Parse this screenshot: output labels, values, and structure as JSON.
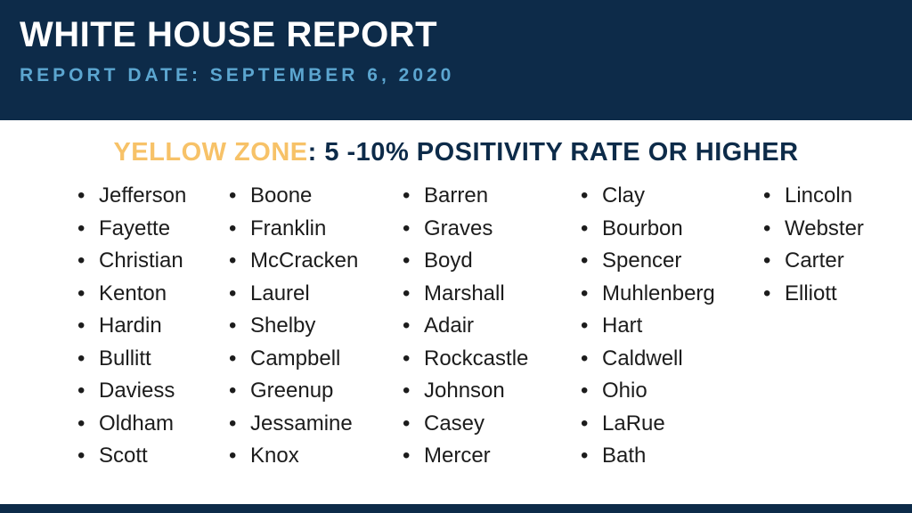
{
  "header": {
    "title": "WHITE HOUSE REPORT",
    "report_date": "REPORT DATE: SEPTEMBER 6, 2020"
  },
  "heading": {
    "zone": "YELLOW ZONE",
    "criteria": ": 5 -10% POSITIVITY RATE OR HIGHER"
  },
  "columns": [
    [
      "Jefferson",
      "Fayette",
      "Christian",
      "Kenton",
      "Hardin",
      "Bullitt",
      "Daviess",
      "Oldham",
      "Scott"
    ],
    [
      "Boone",
      "Franklin",
      "McCracken",
      "Laurel",
      "Shelby",
      "Campbell",
      "Greenup",
      "Jessamine",
      "Knox"
    ],
    [
      "Barren",
      "Graves",
      "Boyd",
      "Marshall",
      "Adair",
      "Rockcastle",
      "Johnson",
      "Casey",
      "Mercer"
    ],
    [
      "Clay",
      "Bourbon",
      "Spencer",
      "Muhlenberg",
      "Hart",
      "Caldwell",
      "Ohio",
      "LaRue",
      "Bath"
    ],
    [
      "Lincoln",
      "Webster",
      "Carter",
      "Elliott"
    ]
  ],
  "colors": {
    "navy": "#0d2b49",
    "light_blue": "#5ca6d0",
    "yellow": "#f7c268"
  }
}
